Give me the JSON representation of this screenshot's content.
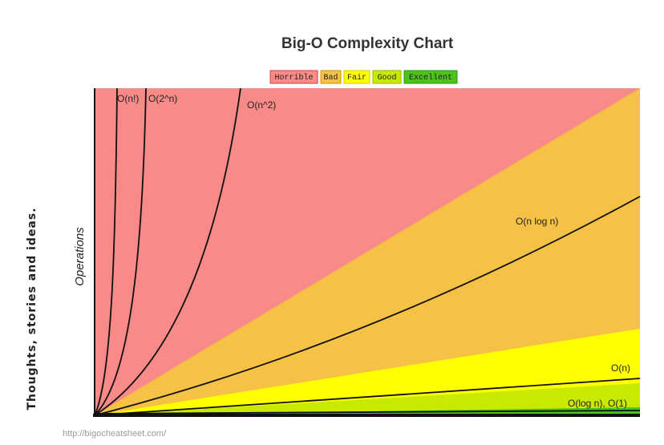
{
  "sidebar": {
    "tagline": "Thoughts, stories and ideas."
  },
  "figure": {
    "title": "Big-O Complexity Chart",
    "legend": [
      "Horrible",
      "Bad",
      "Fair",
      "Good",
      "Excellent"
    ],
    "y_axis_label": "Operations",
    "curve_labels": [
      "O(n!)",
      "O(2^n)",
      "O(n^2)",
      "O(n log n)",
      "O(n)",
      "O(log n), O(1)"
    ],
    "source": "http://bigocheatsheet.com/"
  }
}
